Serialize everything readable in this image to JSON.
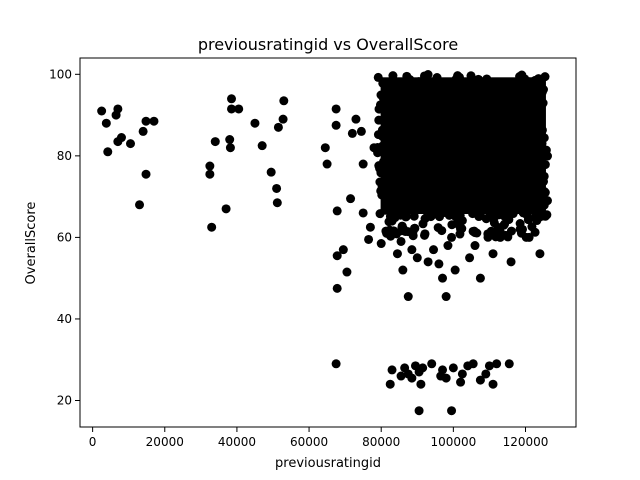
{
  "chart_data": {
    "type": "scatter",
    "title": "previousratingid vs OverallScore",
    "xlabel": "previousratingid",
    "ylabel": "OverallScore",
    "xlim": [
      -3500,
      134000
    ],
    "ylim": [
      13.5,
      104
    ],
    "xticks": [
      0,
      20000,
      40000,
      60000,
      80000,
      100000,
      120000
    ],
    "xtick_labels": [
      "0",
      "20000",
      "40000",
      "60000",
      "80000",
      "100000",
      "120000"
    ],
    "yticks": [
      20,
      40,
      60,
      80,
      100
    ],
    "ytick_labels": [
      "20",
      "40",
      "60",
      "80",
      "100"
    ],
    "grid": false,
    "marker_color": "#000000",
    "dense_cluster": {
      "x_range": [
        79000,
        126500
      ],
      "y_range": [
        65,
        100
      ],
      "description": "thousands of overlapping points forming a solid block"
    },
    "points": [
      [
        2500,
        91
      ],
      [
        3800,
        88
      ],
      [
        4200,
        81
      ],
      [
        7000,
        91.5
      ],
      [
        6500,
        90
      ],
      [
        7000,
        83.5
      ],
      [
        8000,
        84.5
      ],
      [
        10500,
        83
      ],
      [
        13000,
        68
      ],
      [
        14000,
        86
      ],
      [
        14800,
        88.5
      ],
      [
        17000,
        88.5
      ],
      [
        14800,
        75.5
      ],
      [
        32500,
        77.5
      ],
      [
        32500,
        75.5
      ],
      [
        33000,
        62.5
      ],
      [
        34000,
        83.5
      ],
      [
        37000,
        67
      ],
      [
        38000,
        84
      ],
      [
        38200,
        82
      ],
      [
        38500,
        94
      ],
      [
        38500,
        91.5
      ],
      [
        40500,
        91.5
      ],
      [
        45000,
        88
      ],
      [
        47000,
        82.5
      ],
      [
        49500,
        76
      ],
      [
        51000,
        72
      ],
      [
        51200,
        68.5
      ],
      [
        51500,
        87
      ],
      [
        52800,
        89
      ],
      [
        53000,
        93.5
      ],
      [
        64500,
        82
      ],
      [
        65000,
        78
      ],
      [
        67500,
        91.5
      ],
      [
        67500,
        87.5
      ],
      [
        67800,
        66.5
      ],
      [
        67800,
        55.5
      ],
      [
        67800,
        47.5
      ],
      [
        67500,
        29
      ],
      [
        70500,
        51.5
      ],
      [
        69500,
        57
      ],
      [
        72000,
        85.5
      ],
      [
        71500,
        69.5
      ],
      [
        73000,
        89
      ],
      [
        74500,
        86
      ],
      [
        75000,
        78
      ],
      [
        75000,
        66
      ],
      [
        76500,
        59.5
      ],
      [
        77000,
        62.5
      ],
      [
        78000,
        82
      ],
      [
        80000,
        58.5
      ],
      [
        81500,
        61
      ],
      [
        83000,
        64
      ],
      [
        84500,
        56
      ],
      [
        85500,
        59
      ],
      [
        86000,
        52
      ],
      [
        87500,
        45.5
      ],
      [
        88500,
        57
      ],
      [
        90000,
        55
      ],
      [
        92000,
        60.5
      ],
      [
        93000,
        54
      ],
      [
        94500,
        57
      ],
      [
        96000,
        53.5
      ],
      [
        97000,
        50
      ],
      [
        98000,
        45.5
      ],
      [
        98500,
        58
      ],
      [
        99500,
        60
      ],
      [
        100500,
        52
      ],
      [
        102000,
        62
      ],
      [
        104500,
        55
      ],
      [
        106000,
        58
      ],
      [
        107500,
        50
      ],
      [
        110500,
        61.5
      ],
      [
        111000,
        56
      ],
      [
        113000,
        60
      ],
      [
        114000,
        63
      ],
      [
        116000,
        54
      ],
      [
        118500,
        62
      ],
      [
        121000,
        60
      ],
      [
        124000,
        56
      ],
      [
        124000,
        68
      ],
      [
        125500,
        71
      ],
      [
        123500,
        74
      ],
      [
        82500,
        24
      ],
      [
        83000,
        27.5
      ],
      [
        85500,
        26
      ],
      [
        86500,
        28
      ],
      [
        87500,
        26.5
      ],
      [
        88500,
        25.5
      ],
      [
        89500,
        28.5
      ],
      [
        90500,
        27
      ],
      [
        91000,
        24
      ],
      [
        91500,
        28
      ],
      [
        90500,
        17.5
      ],
      [
        94000,
        29
      ],
      [
        96500,
        26
      ],
      [
        97000,
        27.5
      ],
      [
        98000,
        25.5
      ],
      [
        99500,
        17.5
      ],
      [
        100000,
        28
      ],
      [
        102500,
        26.5
      ],
      [
        102000,
        24.5
      ],
      [
        104000,
        28.5
      ],
      [
        105500,
        29
      ],
      [
        107500,
        25
      ],
      [
        109000,
        26.5
      ],
      [
        110000,
        28.5
      ],
      [
        111000,
        24
      ],
      [
        112000,
        29
      ],
      [
        115500,
        29
      ]
    ]
  }
}
